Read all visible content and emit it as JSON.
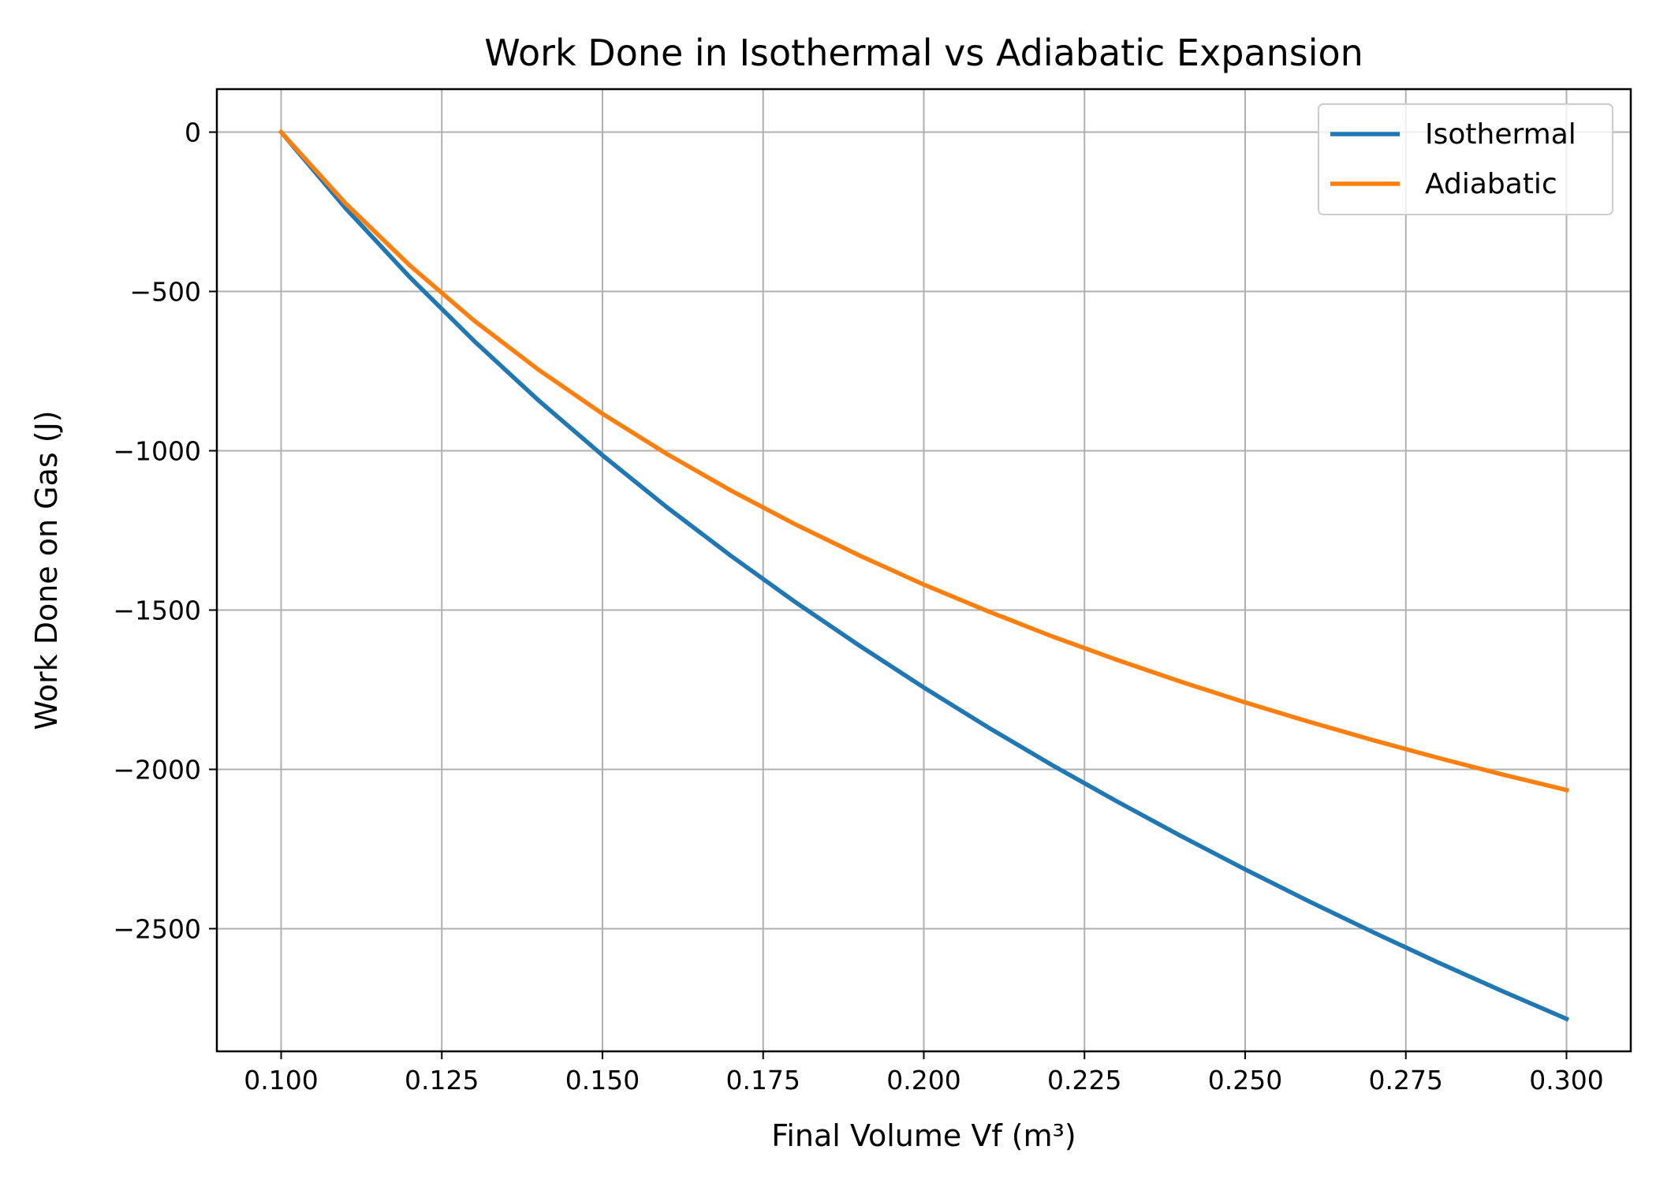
{
  "chart_data": {
    "type": "line",
    "title": "Work Done in Isothermal vs Adiabatic Expansion",
    "xlabel": "Final Volume Vf (m³)",
    "ylabel": "Work Done on Gas (J)",
    "xlim": [
      0.09,
      0.31
    ],
    "ylim": [
      -2885,
      135
    ],
    "x_ticks": [
      0.1,
      0.125,
      0.15,
      0.175,
      0.2,
      0.225,
      0.25,
      0.275,
      0.3
    ],
    "x_tick_labels": [
      "0.100",
      "0.125",
      "0.150",
      "0.175",
      "0.200",
      "0.225",
      "0.250",
      "0.275",
      "0.300"
    ],
    "y_ticks": [
      0,
      -500,
      -1000,
      -1500,
      -2000,
      -2500
    ],
    "y_tick_labels": [
      "0",
      "−500",
      "−1000",
      "−1500",
      "−2000",
      "−2500"
    ],
    "grid": true,
    "legend_position": "top-right",
    "x": [
      0.1,
      0.11,
      0.12,
      0.13,
      0.14,
      0.15,
      0.16,
      0.17,
      0.18,
      0.19,
      0.2,
      0.21,
      0.22,
      0.23,
      0.24,
      0.25,
      0.26,
      0.27,
      0.28,
      0.29,
      0.3
    ],
    "series": [
      {
        "name": "Isothermal",
        "color": "#1f77b4",
        "values": [
          0,
          -238,
          -455,
          -655,
          -841,
          -1014,
          -1177,
          -1330,
          -1475,
          -1612,
          -1743,
          -1868,
          -1987,
          -2100,
          -2209,
          -2314,
          -2415,
          -2512,
          -2606,
          -2696,
          -2783
        ]
      },
      {
        "name": "Adiabatic",
        "color": "#ff7f0e",
        "values": [
          0,
          -223,
          -418,
          -591,
          -745,
          -884,
          -1010,
          -1125,
          -1231,
          -1329,
          -1420,
          -1504,
          -1583,
          -1656,
          -1725,
          -1790,
          -1851,
          -1909,
          -1964,
          -2016,
          -2065
        ]
      }
    ]
  }
}
